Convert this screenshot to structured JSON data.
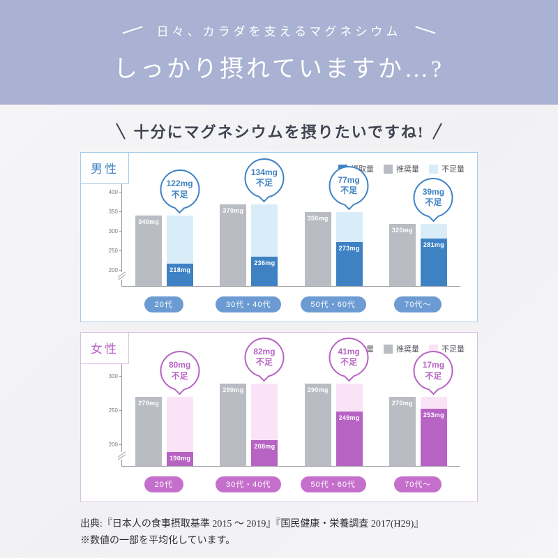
{
  "header": {
    "small_title": "日々、カラダを支えるマグネシウム",
    "main_title": "しっかり摂れていますか…?"
  },
  "subtitle": "十分にマグネシウムを摂りたいですね!",
  "footer": {
    "line1": "出典:『日本人の食事摂取基準 2015 〜 2019』『国民健康・栄養調査 2017(H29)』",
    "line2": "※数値の一部を平均化しています。"
  },
  "chart_data": [
    {
      "type": "bar",
      "title": "男性",
      "unit": "mg",
      "legend": [
        "摂取量",
        "推奨量",
        "不足量"
      ],
      "deficit_label": "不足",
      "categories": [
        "20代",
        "30代・40代",
        "50代・60代",
        "70代〜"
      ],
      "series": [
        {
          "name": "摂取量",
          "values": [
            218,
            236,
            273,
            281
          ]
        },
        {
          "name": "推奨量",
          "values": [
            340,
            370,
            350,
            320
          ]
        },
        {
          "name": "不足量",
          "values": [
            122,
            134,
            77,
            39
          ]
        }
      ],
      "ticks": [
        200,
        250,
        300,
        350,
        400
      ],
      "ylim": [
        200,
        400
      ],
      "draw_range": [
        160,
        425
      ],
      "axis_break": true,
      "grid": false,
      "legend_position": "top-right",
      "colors": {
        "intake": "#3e82c4",
        "recommended": "#b9bcc2",
        "deficit": "#d9edf9",
        "pill": "#6b9bd2",
        "card_border": "#a5cce8"
      }
    },
    {
      "type": "bar",
      "title": "女性",
      "unit": "mg",
      "legend": [
        "摂取量",
        "推奨量",
        "不足量"
      ],
      "deficit_label": "不足",
      "categories": [
        "20代",
        "30代・40代",
        "50代・60代",
        "70代〜"
      ],
      "series": [
        {
          "name": "摂取量",
          "values": [
            190,
            208,
            249,
            253
          ]
        },
        {
          "name": "推奨量",
          "values": [
            270,
            290,
            290,
            270
          ]
        },
        {
          "name": "不足量",
          "values": [
            80,
            82,
            41,
            17
          ]
        }
      ],
      "ticks": [
        200,
        250,
        300
      ],
      "ylim": [
        200,
        300
      ],
      "draw_range": [
        170,
        320
      ],
      "axis_break": true,
      "grid": false,
      "legend_position": "top-right",
      "colors": {
        "intake": "#b763c4",
        "recommended": "#b9bcc2",
        "deficit": "#fae3f6",
        "pill": "#c56fcd",
        "card_border": "#d9c2df"
      }
    }
  ]
}
